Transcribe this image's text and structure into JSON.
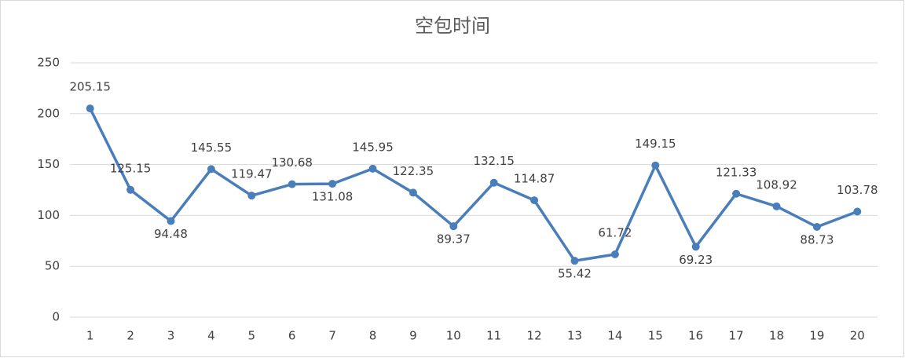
{
  "chart_data": {
    "type": "line",
    "title": "空包时间",
    "categories": [
      "1",
      "2",
      "3",
      "4",
      "5",
      "6",
      "7",
      "8",
      "9",
      "10",
      "11",
      "12",
      "13",
      "14",
      "15",
      "16",
      "17",
      "18",
      "19",
      "20"
    ],
    "values": [
      205.15,
      125.15,
      94.48,
      145.55,
      119.47,
      130.68,
      131.08,
      145.95,
      122.35,
      89.37,
      132.15,
      114.87,
      55.42,
      61.72,
      149.15,
      69.23,
      121.33,
      108.92,
      88.73,
      103.78
    ],
    "color": "#4a7ebb",
    "ylim": [
      0,
      250
    ],
    "yticks": [
      0,
      50,
      100,
      150,
      200,
      250
    ],
    "grid": true
  }
}
